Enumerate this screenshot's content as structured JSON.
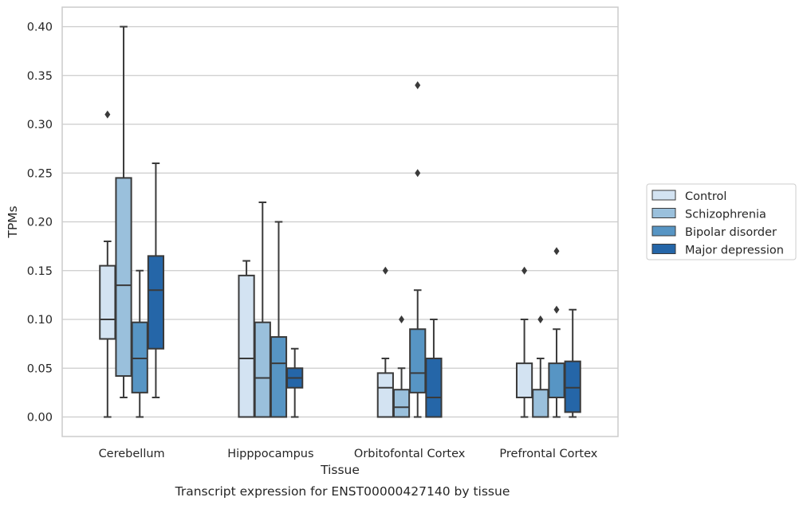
{
  "caption": "Transcript expression for ENST00000427140 by tissue",
  "chart_data": {
    "type": "boxplot",
    "title": "",
    "xlabel": "Tissue",
    "ylabel": "TPMs",
    "ylim": [
      -0.02,
      0.42
    ],
    "yticks": [
      "0.00",
      "0.05",
      "0.10",
      "0.15",
      "0.20",
      "0.25",
      "0.30",
      "0.35",
      "0.40"
    ],
    "grid": "horizontal",
    "legend_position": "outside-right",
    "categories": [
      "Cerebellum",
      "Hipppocampus",
      "Orbitofontal Cortex",
      "Prefrontal Cortex"
    ],
    "series": [
      {
        "name": "Control",
        "color": "#d3e3f2",
        "boxes": [
          {
            "whislo": 0.0,
            "q1": 0.08,
            "med": 0.1,
            "q3": 0.155,
            "whishi": 0.18,
            "fliers": [
              0.31
            ]
          },
          {
            "whislo": 0.0,
            "q1": 0.0,
            "med": 0.06,
            "q3": 0.145,
            "whishi": 0.16,
            "fliers": []
          },
          {
            "whislo": 0.0,
            "q1": 0.0,
            "med": 0.03,
            "q3": 0.045,
            "whishi": 0.06,
            "fliers": [
              0.15
            ]
          },
          {
            "whislo": 0.0,
            "q1": 0.02,
            "med": 0.02,
            "q3": 0.055,
            "whishi": 0.1,
            "fliers": [
              0.15
            ]
          }
        ]
      },
      {
        "name": "Schizophrenia",
        "color": "#9ac0dc",
        "boxes": [
          {
            "whislo": 0.02,
            "q1": 0.042,
            "med": 0.135,
            "q3": 0.245,
            "whishi": 0.4,
            "fliers": []
          },
          {
            "whislo": 0.0,
            "q1": 0.0,
            "med": 0.04,
            "q3": 0.097,
            "whishi": 0.22,
            "fliers": []
          },
          {
            "whislo": 0.0,
            "q1": 0.0,
            "med": 0.01,
            "q3": 0.028,
            "whishi": 0.05,
            "fliers": [
              0.1
            ]
          },
          {
            "whislo": 0.0,
            "q1": 0.0,
            "med": 0.0,
            "q3": 0.028,
            "whishi": 0.06,
            "fliers": [
              0.1
            ]
          }
        ]
      },
      {
        "name": "Bipolar disorder",
        "color": "#5795c4",
        "boxes": [
          {
            "whislo": 0.0,
            "q1": 0.025,
            "med": 0.06,
            "q3": 0.097,
            "whishi": 0.15,
            "fliers": []
          },
          {
            "whislo": 0.0,
            "q1": 0.0,
            "med": 0.055,
            "q3": 0.082,
            "whishi": 0.2,
            "fliers": []
          },
          {
            "whislo": 0.0,
            "q1": 0.025,
            "med": 0.045,
            "q3": 0.09,
            "whishi": 0.13,
            "fliers": [
              0.25,
              0.34
            ]
          },
          {
            "whislo": 0.0,
            "q1": 0.02,
            "med": 0.02,
            "q3": 0.055,
            "whishi": 0.09,
            "fliers": [
              0.11,
              0.17
            ]
          }
        ]
      },
      {
        "name": "Major depression",
        "color": "#2566a8",
        "boxes": [
          {
            "whislo": 0.02,
            "q1": 0.07,
            "med": 0.13,
            "q3": 0.165,
            "whishi": 0.26,
            "fliers": []
          },
          {
            "whislo": 0.0,
            "q1": 0.03,
            "med": 0.04,
            "q3": 0.05,
            "whishi": 0.07,
            "fliers": []
          },
          {
            "whislo": 0.0,
            "q1": 0.0,
            "med": 0.02,
            "q3": 0.06,
            "whishi": 0.1,
            "fliers": []
          },
          {
            "whislo": 0.0,
            "q1": 0.005,
            "med": 0.03,
            "q3": 0.057,
            "whishi": 0.11,
            "fliers": []
          }
        ]
      }
    ]
  }
}
